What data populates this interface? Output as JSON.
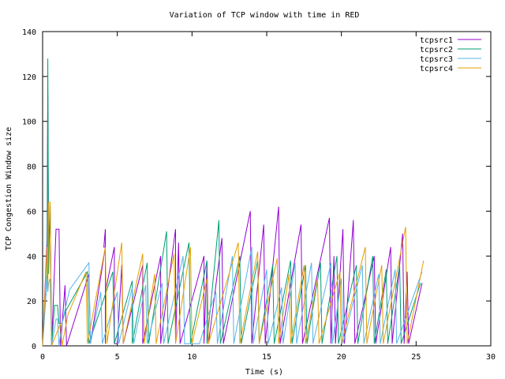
{
  "chart_data": {
    "type": "line",
    "title": "Variation of TCP window with time in RED",
    "xlabel": "Time (s)",
    "ylabel": "TCP Congestion Window size",
    "xlim": [
      0,
      30
    ],
    "ylim": [
      0,
      140
    ],
    "xticks": [
      0,
      5,
      10,
      15,
      20,
      25,
      30
    ],
    "yticks": [
      0,
      20,
      40,
      60,
      80,
      100,
      120,
      140
    ],
    "grid": false,
    "legend_position": "top-right",
    "series": [
      {
        "name": "tcpsrc1",
        "color": "#9400d3",
        "points": [
          [
            0,
            0
          ],
          [
            0.3,
            48
          ],
          [
            0.35,
            112
          ],
          [
            0.4,
            40
          ],
          [
            0.5,
            64
          ],
          [
            0.6,
            0
          ],
          [
            0.9,
            52
          ],
          [
            1.1,
            52
          ],
          [
            1.2,
            0
          ],
          [
            1.5,
            27
          ],
          [
            1.6,
            0
          ],
          [
            3.1,
            32
          ],
          [
            3.2,
            1
          ],
          [
            4.2,
            44
          ],
          [
            4.2,
            1
          ],
          [
            4.2,
            1
          ],
          [
            4.2,
            44
          ],
          [
            4.1,
            44
          ],
          [
            4.2,
            52
          ],
          [
            4.2,
            52
          ],
          [
            4.2,
            24
          ],
          [
            4.8,
            44
          ],
          [
            4.8,
            1
          ],
          [
            5.0,
            1
          ],
          [
            5.3,
            36
          ],
          [
            5.4,
            1
          ],
          [
            6.7,
            36
          ],
          [
            6.7,
            1
          ],
          [
            7.9,
            40
          ],
          [
            7.9,
            1
          ],
          [
            8.9,
            52
          ],
          [
            8.9,
            1
          ],
          [
            9.1,
            46
          ],
          [
            9.2,
            1
          ],
          [
            10.8,
            40
          ],
          [
            10.8,
            1
          ],
          [
            11.0,
            37
          ],
          [
            11.1,
            1
          ],
          [
            12.0,
            48
          ],
          [
            12.1,
            1
          ],
          [
            13.9,
            60
          ],
          [
            14.0,
            1
          ],
          [
            14.8,
            54
          ],
          [
            14.9,
            1
          ],
          [
            15.8,
            62
          ],
          [
            15.9,
            1
          ],
          [
            17.3,
            54
          ],
          [
            17.4,
            1
          ],
          [
            19.2,
            57
          ],
          [
            19.3,
            1
          ],
          [
            19.5,
            40
          ],
          [
            19.6,
            1
          ],
          [
            20.1,
            52
          ],
          [
            20.2,
            1
          ],
          [
            20.8,
            56
          ],
          [
            20.9,
            1
          ],
          [
            22.2,
            40
          ],
          [
            22.3,
            1
          ],
          [
            23.3,
            44
          ],
          [
            23.4,
            1
          ],
          [
            24.1,
            50
          ],
          [
            24.2,
            1
          ],
          [
            24.4,
            33
          ],
          [
            24.5,
            1
          ],
          [
            25.4,
            28
          ]
        ]
      },
      {
        "name": "tcpsrc2",
        "color": "#009e73",
        "points": [
          [
            0,
            0
          ],
          [
            0.3,
            32
          ],
          [
            0.35,
            128
          ],
          [
            0.4,
            32
          ],
          [
            0.5,
            64
          ],
          [
            0.6,
            0
          ],
          [
            0.8,
            18
          ],
          [
            1.0,
            18
          ],
          [
            1.1,
            10
          ],
          [
            1.3,
            10
          ],
          [
            1.5,
            15
          ],
          [
            3.0,
            33
          ],
          [
            3.1,
            1
          ],
          [
            4.7,
            33
          ],
          [
            4.8,
            1
          ],
          [
            4.8,
            1
          ],
          [
            6.0,
            29
          ],
          [
            6.0,
            1
          ],
          [
            7.0,
            37
          ],
          [
            7.1,
            1
          ],
          [
            8.3,
            51
          ],
          [
            8.4,
            1
          ],
          [
            9.8,
            46
          ],
          [
            9.9,
            1
          ],
          [
            11.0,
            38
          ],
          [
            11.0,
            1
          ],
          [
            11.8,
            56
          ],
          [
            11.9,
            1
          ],
          [
            13.2,
            40
          ],
          [
            13.3,
            1
          ],
          [
            14.4,
            38
          ],
          [
            14.5,
            1
          ],
          [
            15.4,
            36
          ],
          [
            15.5,
            1
          ],
          [
            16.6,
            38
          ],
          [
            16.7,
            1
          ],
          [
            17.6,
            36
          ],
          [
            17.7,
            1
          ],
          [
            18.6,
            37
          ],
          [
            18.7,
            1
          ],
          [
            19.7,
            40
          ],
          [
            19.8,
            1
          ],
          [
            21.0,
            36
          ],
          [
            21.1,
            1
          ],
          [
            22.1,
            40
          ],
          [
            22.2,
            1
          ],
          [
            23.0,
            34
          ],
          [
            23.1,
            1
          ],
          [
            23.9,
            36
          ],
          [
            24.0,
            1
          ],
          [
            25.3,
            28
          ]
        ]
      },
      {
        "name": "tcpsrc3",
        "color": "#56b4e9",
        "points": [
          [
            0,
            0
          ],
          [
            0.3,
            30
          ],
          [
            0.35,
            24
          ],
          [
            0.4,
            28
          ],
          [
            0.5,
            30
          ],
          [
            0.6,
            0
          ],
          [
            0.9,
            12
          ],
          [
            1.0,
            12
          ],
          [
            1.1,
            0
          ],
          [
            1.3,
            10
          ],
          [
            1.8,
            25
          ],
          [
            3.1,
            37
          ],
          [
            3.2,
            1
          ],
          [
            3.9,
            24
          ],
          [
            4.0,
            1
          ],
          [
            5.0,
            24
          ],
          [
            5.1,
            1
          ],
          [
            6.0,
            26
          ],
          [
            6.1,
            1
          ],
          [
            6.9,
            27
          ],
          [
            7.0,
            1
          ],
          [
            8.0,
            28
          ],
          [
            8.1,
            1
          ],
          [
            9.4,
            40
          ],
          [
            9.5,
            1
          ],
          [
            10.0,
            1
          ],
          [
            10.5,
            1
          ],
          [
            11.0,
            12
          ],
          [
            11.6,
            24
          ],
          [
            11.7,
            1
          ],
          [
            12.7,
            40
          ],
          [
            12.8,
            1
          ],
          [
            14.0,
            44
          ],
          [
            14.1,
            1
          ],
          [
            15.0,
            34
          ],
          [
            15.1,
            1
          ],
          [
            16.0,
            26
          ],
          [
            16.1,
            1
          ],
          [
            16.9,
            37
          ],
          [
            17.0,
            1
          ],
          [
            18.0,
            37
          ],
          [
            18.1,
            1
          ],
          [
            19.3,
            37
          ],
          [
            19.4,
            1
          ],
          [
            20.0,
            30
          ],
          [
            20.1,
            1
          ],
          [
            21.4,
            36
          ],
          [
            21.5,
            1
          ],
          [
            22.5,
            32
          ],
          [
            22.6,
            1
          ],
          [
            23.6,
            34
          ],
          [
            23.7,
            1
          ],
          [
            25.4,
            33
          ]
        ]
      },
      {
        "name": "tcpsrc4",
        "color": "#e69f00",
        "points": [
          [
            0,
            0
          ],
          [
            0.3,
            44
          ],
          [
            0.35,
            26
          ],
          [
            0.4,
            64
          ],
          [
            0.5,
            64
          ],
          [
            0.6,
            0
          ],
          [
            1.2,
            10
          ],
          [
            1.3,
            0
          ],
          [
            1.7,
            14
          ],
          [
            2.9,
            33
          ],
          [
            3.0,
            1
          ],
          [
            4.2,
            44
          ],
          [
            4.3,
            1
          ],
          [
            5.3,
            46
          ],
          [
            5.4,
            1
          ],
          [
            6.7,
            41
          ],
          [
            6.8,
            1
          ],
          [
            7.5,
            32
          ],
          [
            7.6,
            1
          ],
          [
            8.8,
            41
          ],
          [
            8.9,
            1
          ],
          [
            9.9,
            44
          ],
          [
            10.0,
            1
          ],
          [
            11.0,
            30
          ],
          [
            11.1,
            1
          ],
          [
            13.1,
            46
          ],
          [
            13.2,
            1
          ],
          [
            14.4,
            42
          ],
          [
            14.5,
            1
          ],
          [
            15.7,
            39
          ],
          [
            15.8,
            1
          ],
          [
            16.5,
            32
          ],
          [
            16.6,
            1
          ],
          [
            17.5,
            36
          ],
          [
            17.6,
            1
          ],
          [
            18.4,
            30
          ],
          [
            18.5,
            1
          ],
          [
            19.9,
            33
          ],
          [
            20.0,
            1
          ],
          [
            21.6,
            44
          ],
          [
            21.7,
            1
          ],
          [
            22.7,
            36
          ],
          [
            22.8,
            1
          ],
          [
            24.3,
            53
          ],
          [
            24.4,
            1
          ],
          [
            25.5,
            38
          ]
        ]
      }
    ]
  }
}
